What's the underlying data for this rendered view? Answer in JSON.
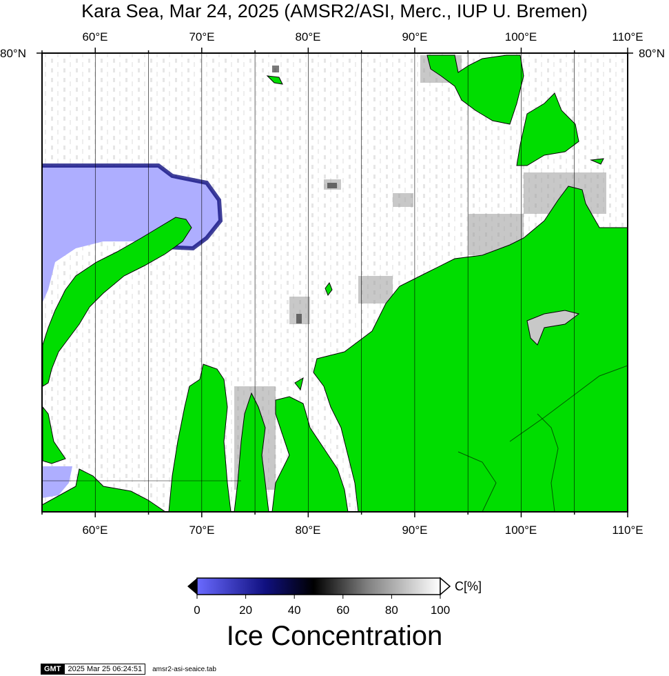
{
  "title": "Kara Sea, Mar 24, 2025 (AMSR2/ASI, Merc., IUP U. Bremen)",
  "map": {
    "lon_labels_top": [
      "60°E",
      "70°E",
      "80°E",
      "90°E",
      "100°E",
      "110°E"
    ],
    "lon_labels_bottom": [
      "60°E",
      "70°E",
      "80°E",
      "90°E",
      "100°E",
      "110°E"
    ],
    "lat_label_left": "80°N",
    "lat_label_right": "80°N",
    "colors": {
      "land": "#00dd00",
      "water": "#aeaeff",
      "ice_full": "#ffffff",
      "coastline": "#000000"
    },
    "lon_range": [
      55,
      110
    ],
    "meridian_step_deg": 5
  },
  "colorbar": {
    "ticks": [
      "0",
      "20",
      "40",
      "60",
      "80",
      "100"
    ],
    "unit": "C[%]",
    "title": "Ice Concentration",
    "colors": [
      "#6a6aff",
      "#101080",
      "#000000",
      "#808080",
      "#ffffff"
    ]
  },
  "footer": {
    "gmt_logo": "GMT",
    "timestamp": "2025 Mar 25 06:24:51",
    "filename": "amsr2-asi-seaice.tab"
  }
}
